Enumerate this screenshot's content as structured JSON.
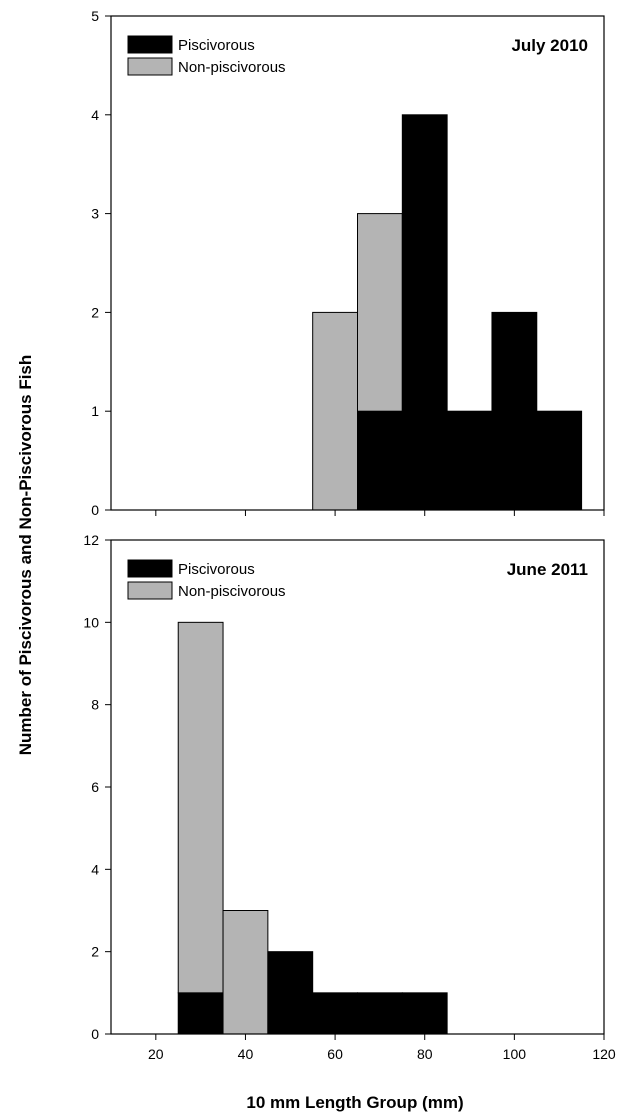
{
  "chart_data": [
    {
      "type": "bar",
      "stacked": true,
      "title": "July 2010",
      "x": [
        30,
        40,
        50,
        60,
        70,
        80,
        90,
        100,
        110
      ],
      "series": [
        {
          "name": "Piscivorous",
          "color": "#000000",
          "values": [
            0,
            0,
            0,
            0,
            1,
            4,
            1,
            2,
            1
          ]
        },
        {
          "name": "Non-piscivorous",
          "color": "#b4b4b4",
          "values": [
            0,
            0,
            0,
            2,
            2,
            0,
            0,
            0,
            0
          ]
        }
      ],
      "ylim": [
        0,
        5
      ],
      "yticks": [
        "0",
        "1",
        "2",
        "3",
        "4",
        "5"
      ],
      "legend": "top-left"
    },
    {
      "type": "bar",
      "stacked": true,
      "title": "June 2011",
      "x": [
        30,
        40,
        50,
        60,
        70,
        80
      ],
      "series": [
        {
          "name": "Piscivorous",
          "color": "#000000",
          "values": [
            1,
            0,
            2,
            1,
            1,
            1
          ]
        },
        {
          "name": "Non-piscivorous",
          "color": "#b4b4b4",
          "values": [
            9,
            3,
            0,
            0,
            0,
            0
          ]
        }
      ],
      "xlim": [
        10,
        120
      ],
      "xticks": [
        "20",
        "40",
        "60",
        "80",
        "100",
        "120"
      ],
      "ylim": [
        0,
        12
      ],
      "yticks": [
        "0",
        "2",
        "4",
        "6",
        "8",
        "10",
        "12"
      ],
      "legend": "top-left"
    }
  ],
  "shared": {
    "xlabel": "10 mm Length Group (mm)",
    "ylabel": "Number of Piscivorous and Non-Piscivorous Fish"
  }
}
